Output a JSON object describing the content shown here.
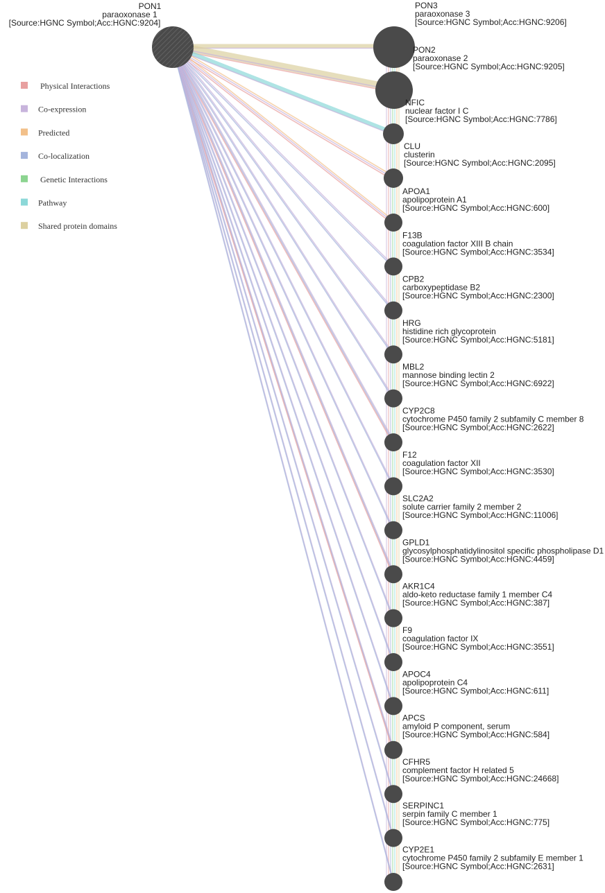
{
  "legend": [
    {
      "label": "Physical Interactions",
      "color": "#e8a0a0",
      "key": "physical"
    },
    {
      "label": "Co-expression",
      "color": "#c8b4dc",
      "key": "coexp"
    },
    {
      "label": "Predicted",
      "color": "#f2c08a",
      "key": "predicted"
    },
    {
      "label": "Co-localization",
      "color": "#a4b4dc",
      "key": "coloc"
    },
    {
      "label": "Genetic Interactions",
      "color": "#8cd490",
      "key": "genetic"
    },
    {
      "label": "Pathway",
      "color": "#8cd8d8",
      "key": "pathway"
    },
    {
      "label": "Shared protein domains",
      "color": "#dcd0a0",
      "key": "domains"
    }
  ],
  "query_node": {
    "symbol": "PON1",
    "name": "paraoxonase 1",
    "source": "[Source:HGNC Symbol;Acc:HGNC:9204]"
  },
  "nodes": [
    {
      "symbol": "PON3",
      "name": "paraoxonase 3",
      "source": "[Source:HGNC Symbol;Acc:HGNC:9206]"
    },
    {
      "symbol": "PON2",
      "name": "paraoxonase 2",
      "source": "[Source:HGNC Symbol;Acc:HGNC:9205]"
    },
    {
      "symbol": "NFIC",
      "name": "nuclear factor I C",
      "source": "[Source:HGNC Symbol;Acc:HGNC:7786]"
    },
    {
      "symbol": "CLU",
      "name": "clusterin",
      "source": "[Source:HGNC Symbol;Acc:HGNC:2095]"
    },
    {
      "symbol": "APOA1",
      "name": "apolipoprotein A1",
      "source": "[Source:HGNC Symbol;Acc:HGNC:600]"
    },
    {
      "symbol": "F13B",
      "name": "coagulation factor XIII B chain",
      "source": "[Source:HGNC Symbol;Acc:HGNC:3534]"
    },
    {
      "symbol": "CPB2",
      "name": "carboxypeptidase B2",
      "source": "[Source:HGNC Symbol;Acc:HGNC:2300]"
    },
    {
      "symbol": "HRG",
      "name": "histidine rich glycoprotein",
      "source": "[Source:HGNC Symbol;Acc:HGNC:5181]"
    },
    {
      "symbol": "MBL2",
      "name": "mannose binding lectin 2",
      "source": "[Source:HGNC Symbol;Acc:HGNC:6922]"
    },
    {
      "symbol": "CYP2C8",
      "name": "cytochrome P450 family 2 subfamily C member 8",
      "source": "[Source:HGNC Symbol;Acc:HGNC:2622]"
    },
    {
      "symbol": "F12",
      "name": "coagulation factor XII",
      "source": "[Source:HGNC Symbol;Acc:HGNC:3530]"
    },
    {
      "symbol": "SLC2A2",
      "name": "solute carrier family 2 member 2",
      "source": "[Source:HGNC Symbol;Acc:HGNC:11006]"
    },
    {
      "symbol": "GPLD1",
      "name": "glycosylphosphatidylinositol specific phospholipase D1",
      "source": "[Source:HGNC Symbol;Acc:HGNC:4459]"
    },
    {
      "symbol": "AKR1C4",
      "name": "aldo-keto reductase family 1 member C4",
      "source": "[Source:HGNC Symbol;Acc:HGNC:387]"
    },
    {
      "symbol": "F9",
      "name": "coagulation factor IX",
      "source": "[Source:HGNC Symbol;Acc:HGNC:3551]"
    },
    {
      "symbol": "APOC4",
      "name": "apolipoprotein C4",
      "source": "[Source:HGNC Symbol;Acc:HGNC:611]"
    },
    {
      "symbol": "APCS",
      "name": "amyloid P component, serum",
      "source": "[Source:HGNC Symbol;Acc:HGNC:584]"
    },
    {
      "symbol": "CFHR5",
      "name": "complement factor H related 5",
      "source": "[Source:HGNC Symbol;Acc:HGNC:24668]"
    },
    {
      "symbol": "SERPINC1",
      "name": "serpin family C member 1",
      "source": "[Source:HGNC Symbol;Acc:HGNC:775]"
    },
    {
      "symbol": "CYP2E1",
      "name": "cytochrome P450 family 2 subfamily E member 1",
      "source": "[Source:HGNC Symbol;Acc:HGNC:2631]"
    }
  ],
  "colors": {
    "node_fill": "#4a4a4a",
    "physical": "#e8a0a0",
    "coexp": "#c8b4dc",
    "predicted": "#f2c08a",
    "coloc": "#a4b4dc",
    "genetic": "#8cd490",
    "pathway": "#8cd8d8",
    "domains": "#dcd0a0"
  },
  "edges_from_query": [
    {
      "target": "PON3",
      "types": [
        "domains",
        "coexp"
      ]
    },
    {
      "target": "PON2",
      "types": [
        "domains",
        "coexp",
        "physical"
      ]
    },
    {
      "target": "NFIC",
      "types": [
        "pathway",
        "coexp"
      ]
    },
    {
      "target": "CLU",
      "types": [
        "predicted",
        "coexp",
        "physical"
      ]
    },
    {
      "target": "APOA1",
      "types": [
        "predicted",
        "coexp",
        "physical"
      ]
    },
    {
      "target": "F13B",
      "types": [
        "coexp",
        "coloc"
      ]
    },
    {
      "target": "CPB2",
      "types": [
        "coexp",
        "coloc"
      ]
    },
    {
      "target": "HRG",
      "types": [
        "coexp",
        "coloc"
      ]
    },
    {
      "target": "MBL2",
      "types": [
        "coexp",
        "coloc"
      ]
    },
    {
      "target": "CYP2C8",
      "types": [
        "coexp",
        "coloc",
        "physical"
      ]
    },
    {
      "target": "F12",
      "types": [
        "coexp",
        "coloc"
      ]
    },
    {
      "target": "SLC2A2",
      "types": [
        "coexp",
        "coloc"
      ]
    },
    {
      "target": "GPLD1",
      "types": [
        "coexp",
        "coloc",
        "physical"
      ]
    },
    {
      "target": "AKR1C4",
      "types": [
        "coexp",
        "coloc"
      ]
    },
    {
      "target": "F9",
      "types": [
        "coexp",
        "coloc"
      ]
    },
    {
      "target": "APOC4",
      "types": [
        "coexp",
        "coloc"
      ]
    },
    {
      "target": "APCS",
      "types": [
        "coexp",
        "coloc",
        "physical"
      ]
    },
    {
      "target": "CFHR5",
      "types": [
        "coexp",
        "coloc"
      ]
    },
    {
      "target": "SERPINC1",
      "types": [
        "coexp",
        "coloc"
      ]
    },
    {
      "target": "CYP2E1",
      "types": [
        "coexp",
        "coloc"
      ]
    }
  ]
}
